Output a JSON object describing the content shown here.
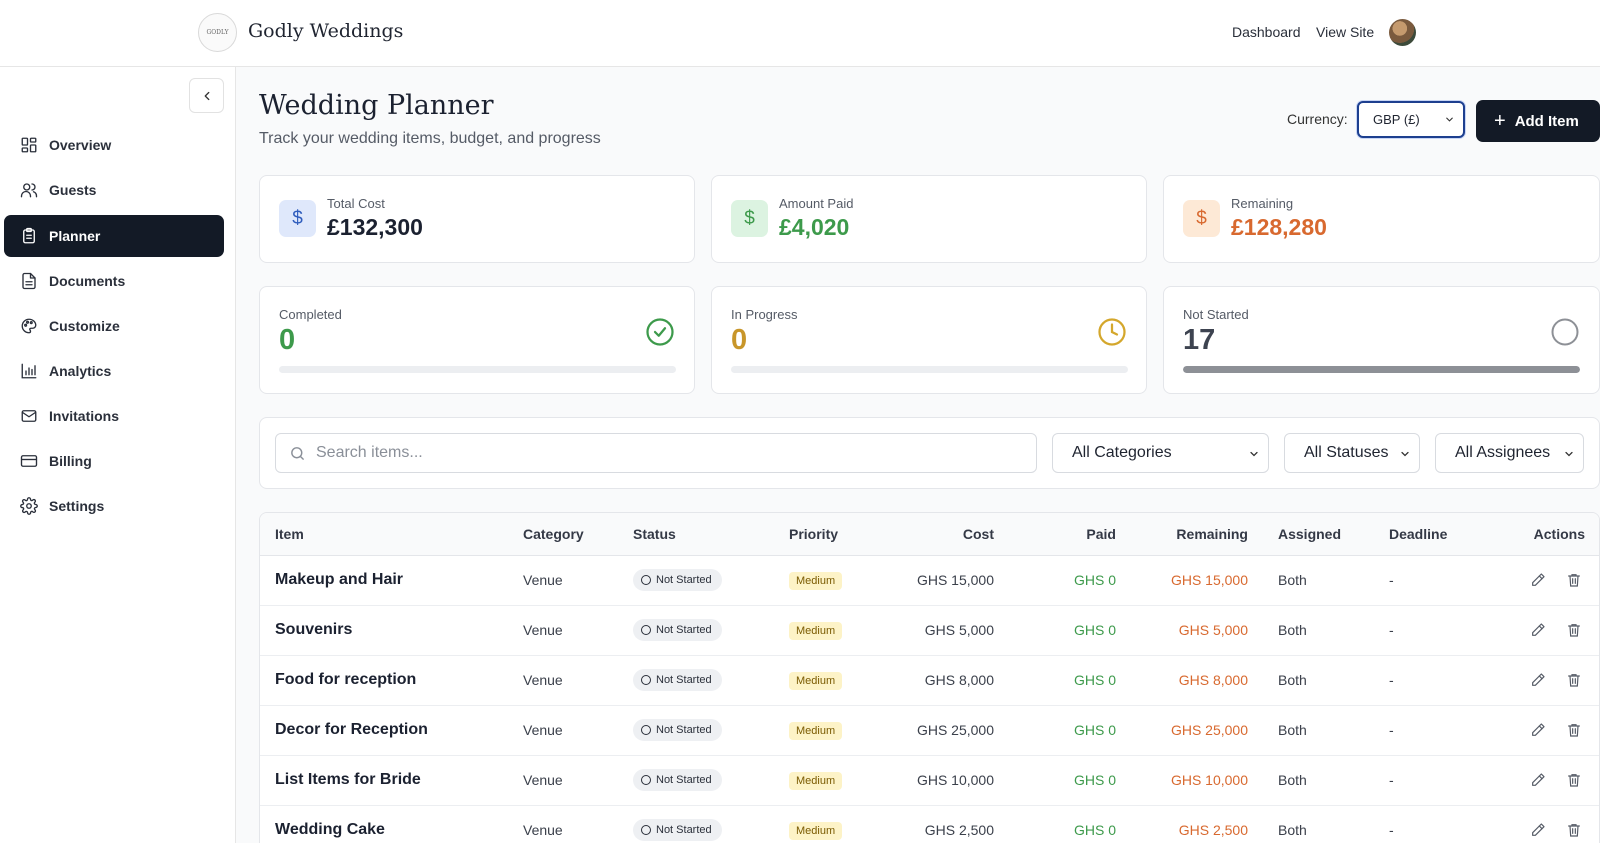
{
  "header": {
    "logo_text": "GODLY",
    "brand": "Godly Weddings",
    "links": [
      "Dashboard",
      "View Site"
    ]
  },
  "sidebar": {
    "items": [
      {
        "label": "Overview",
        "icon": "grid-icon",
        "active": false
      },
      {
        "label": "Guests",
        "icon": "users-icon",
        "active": false
      },
      {
        "label": "Planner",
        "icon": "clipboard-icon",
        "active": true
      },
      {
        "label": "Documents",
        "icon": "document-icon",
        "active": false
      },
      {
        "label": "Customize",
        "icon": "palette-icon",
        "active": false
      },
      {
        "label": "Analytics",
        "icon": "bar-chart-icon",
        "active": false
      },
      {
        "label": "Invitations",
        "icon": "mail-icon",
        "active": false
      },
      {
        "label": "Billing",
        "icon": "credit-card-icon",
        "active": false
      },
      {
        "label": "Settings",
        "icon": "gear-icon",
        "active": false
      }
    ]
  },
  "page": {
    "title": "Wedding Planner",
    "subtitle": "Track your wedding items, budget, and progress",
    "currency_label": "Currency:",
    "currency_value": "GBP (£)",
    "add_button": "Add Item"
  },
  "summary": {
    "total_cost": {
      "label": "Total Cost",
      "value": "£132,300"
    },
    "amount_paid": {
      "label": "Amount Paid",
      "value": "£4,020"
    },
    "remaining": {
      "label": "Remaining",
      "value": "£128,280"
    }
  },
  "progress": {
    "completed": {
      "label": "Completed",
      "value": "0",
      "fraction": 0
    },
    "in_progress": {
      "label": "In Progress",
      "value": "0",
      "fraction": 0
    },
    "not_started": {
      "label": "Not Started",
      "value": "17",
      "fraction": 1
    }
  },
  "filters": {
    "search_placeholder": "Search items...",
    "category": "All Categories",
    "status": "All Statuses",
    "assignee": "All Assignees"
  },
  "table": {
    "headers": [
      "Item",
      "Category",
      "Status",
      "Priority",
      "Cost",
      "Paid",
      "Remaining",
      "Assigned",
      "Deadline",
      "Actions"
    ],
    "rows": [
      {
        "item": "Makeup and Hair",
        "category": "Venue",
        "status": "Not Started",
        "priority": "Medium",
        "cost": "GHS 15,000",
        "paid": "GHS 0",
        "remaining": "GHS 15,000",
        "assigned": "Both",
        "deadline": "-"
      },
      {
        "item": "Souvenirs",
        "category": "Venue",
        "status": "Not Started",
        "priority": "Medium",
        "cost": "GHS 5,000",
        "paid": "GHS 0",
        "remaining": "GHS 5,000",
        "assigned": "Both",
        "deadline": "-"
      },
      {
        "item": "Food for reception",
        "category": "Venue",
        "status": "Not Started",
        "priority": "Medium",
        "cost": "GHS 8,000",
        "paid": "GHS 0",
        "remaining": "GHS 8,000",
        "assigned": "Both",
        "deadline": "-"
      },
      {
        "item": "Decor for Reception",
        "category": "Venue",
        "status": "Not Started",
        "priority": "Medium",
        "cost": "GHS 25,000",
        "paid": "GHS 0",
        "remaining": "GHS 25,000",
        "assigned": "Both",
        "deadline": "-"
      },
      {
        "item": "List Items for Bride",
        "category": "Venue",
        "status": "Not Started",
        "priority": "Medium",
        "cost": "GHS 10,000",
        "paid": "GHS 0",
        "remaining": "GHS 10,000",
        "assigned": "Both",
        "deadline": "-"
      },
      {
        "item": "Wedding Cake",
        "category": "Venue",
        "status": "Not Started",
        "priority": "Medium",
        "cost": "GHS 2,500",
        "paid": "GHS 0",
        "remaining": "GHS 2,500",
        "assigned": "Both",
        "deadline": "-"
      }
    ]
  },
  "colors": {
    "dark": "#131a26",
    "green": "#3d9a4b",
    "orange": "#d8692f",
    "gold": "#d4a72c",
    "blue_icon_bg": "#dfe8fb",
    "green_icon_bg": "#dcf3e1",
    "orange_icon_bg": "#fde9d6"
  }
}
